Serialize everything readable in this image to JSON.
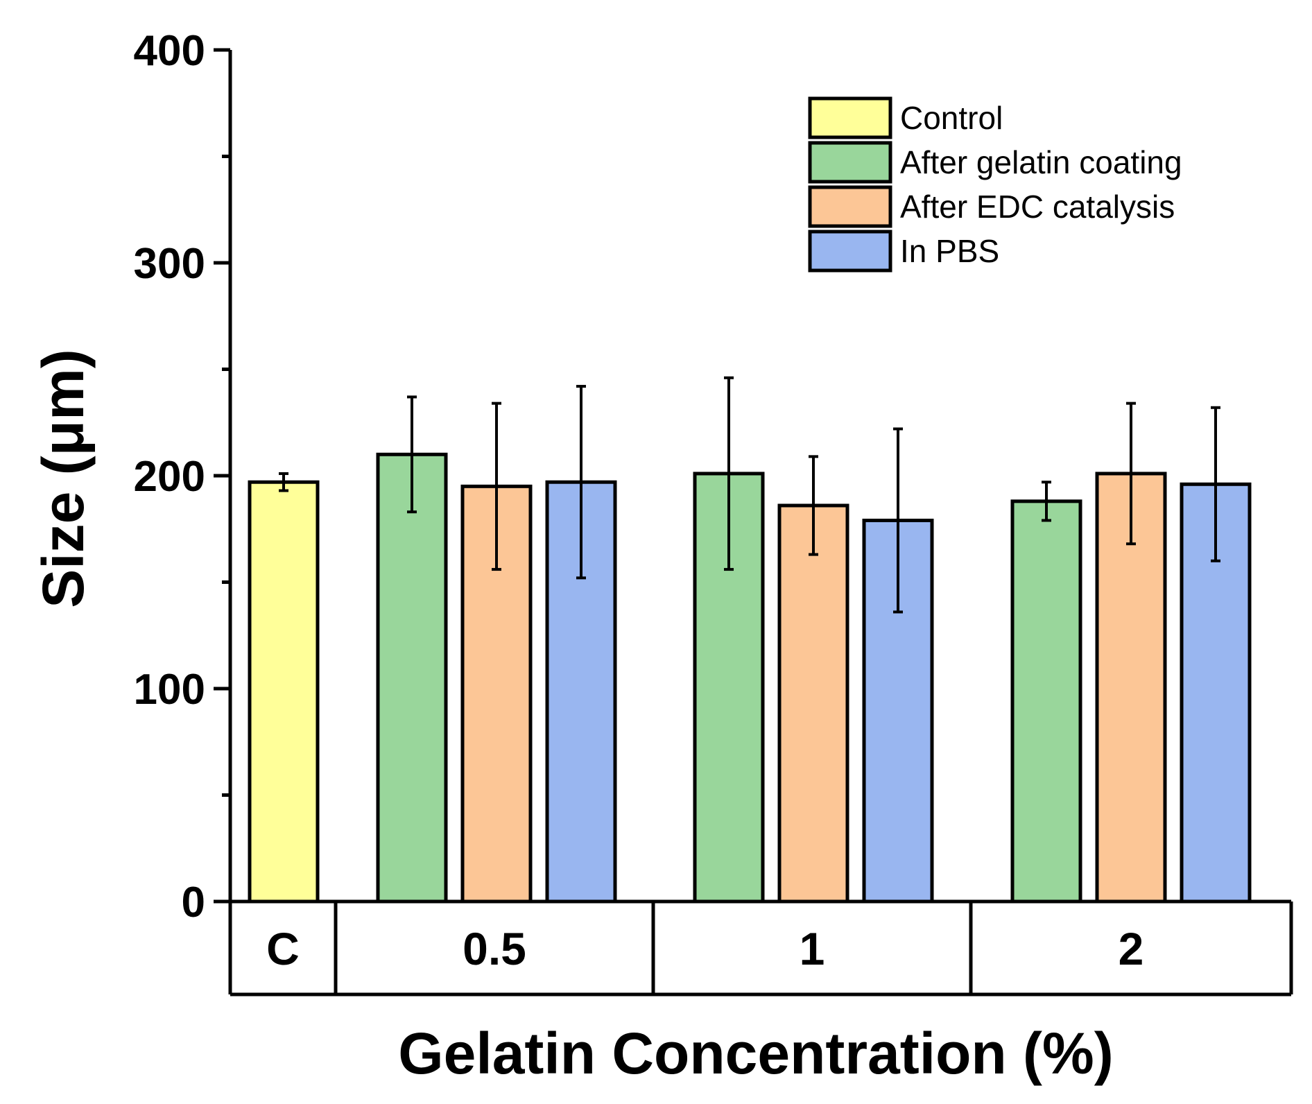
{
  "chart_data": {
    "type": "bar",
    "title": "",
    "xlabel": "Gelatin Concentration (%)",
    "ylabel": "Size (μm)",
    "ylim": [
      0,
      400
    ],
    "yticks": [
      0,
      100,
      200,
      300,
      400
    ],
    "grid": false,
    "legend_position": "top-right",
    "categories": [
      "C",
      "0.5",
      "1",
      "2"
    ],
    "series": [
      {
        "name": "Control",
        "color": "#ffff99",
        "values": [
          197,
          null,
          null,
          null
        ],
        "errors": [
          4,
          null,
          null,
          null
        ]
      },
      {
        "name": "After gelatin coating",
        "color": "#99d69b",
        "values": [
          null,
          210,
          201,
          188
        ],
        "errors": [
          null,
          27,
          45,
          9
        ]
      },
      {
        "name": "After EDC catalysis",
        "color": "#fcc696",
        "values": [
          null,
          195,
          186,
          201
        ],
        "errors": [
          null,
          39,
          23,
          33
        ]
      },
      {
        "name": "In PBS",
        "color": "#99b6f0",
        "values": [
          null,
          197,
          179,
          196
        ],
        "errors": [
          null,
          45,
          43,
          36
        ]
      }
    ]
  }
}
